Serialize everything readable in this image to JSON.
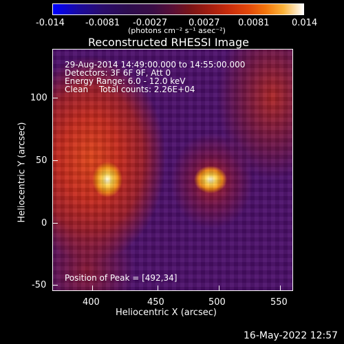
{
  "colorbar": {
    "tick_labels": [
      "-0.014",
      "-0.0081",
      "-0.0027",
      "0.0027",
      "0.0081",
      "0.014"
    ],
    "units": "(photons cm⁻² s⁻¹ asec⁻²)"
  },
  "title": "Reconstructed RHESSI Image",
  "annotations": {
    "line1": "29-Aug-2014 14:49:00.000 to 14:55:00.000",
    "line2": "Detectors: 3F 6F 9F, Att 0",
    "line3": "Energy Range: 6.0 - 12.0 keV",
    "line4_left": "Clean",
    "line4_right": "Total counts: 2.26E+04",
    "peak": "Position of Peak = [492,34]"
  },
  "axes": {
    "xlabel": "Heliocentric X (arcsec)",
    "ylabel": "Heliocentric Y (arcsec)",
    "xticks": [
      "400",
      "450",
      "500",
      "550"
    ],
    "yticks": [
      "100",
      "50",
      "0",
      "-50"
    ]
  },
  "timestamp": "16-May-2022 12:57"
}
